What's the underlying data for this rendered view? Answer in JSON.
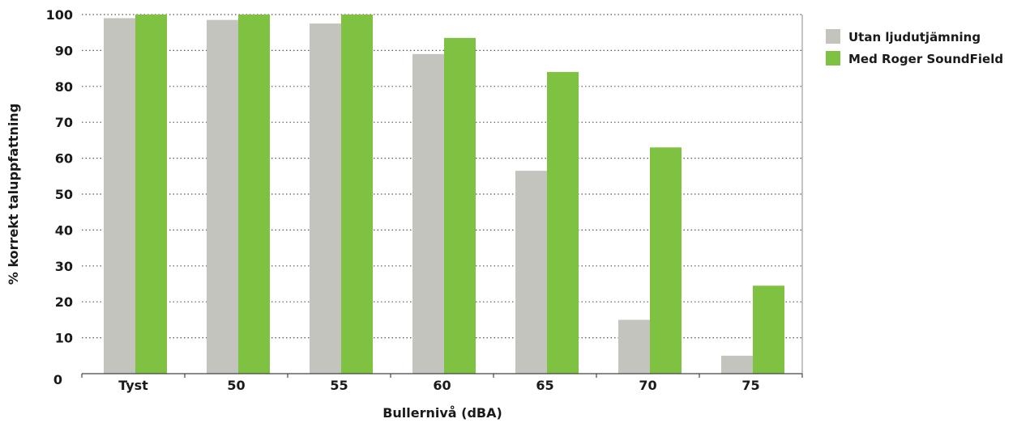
{
  "chart_data": {
    "type": "bar",
    "categories": [
      "Tyst",
      "50",
      "55",
      "60",
      "65",
      "70",
      "75"
    ],
    "series": [
      {
        "name": "Utan ljudutjämning",
        "color": "#c4c4bf",
        "values": [
          99,
          98.5,
          97.5,
          89,
          56.5,
          15,
          5
        ]
      },
      {
        "name": "Med Roger SoundField",
        "color": "#7fc241",
        "values": [
          100,
          100,
          100,
          93.5,
          84,
          63,
          24.5
        ]
      }
    ],
    "title": "",
    "xlabel": "Bullernivå (dBA)",
    "ylabel": "% korrekt taluppfattning",
    "ylim": [
      0,
      100
    ],
    "yticks": [
      0,
      10,
      20,
      30,
      40,
      50,
      60,
      70,
      80,
      90,
      100
    ],
    "grid": true,
    "legend_position": "top-right"
  }
}
